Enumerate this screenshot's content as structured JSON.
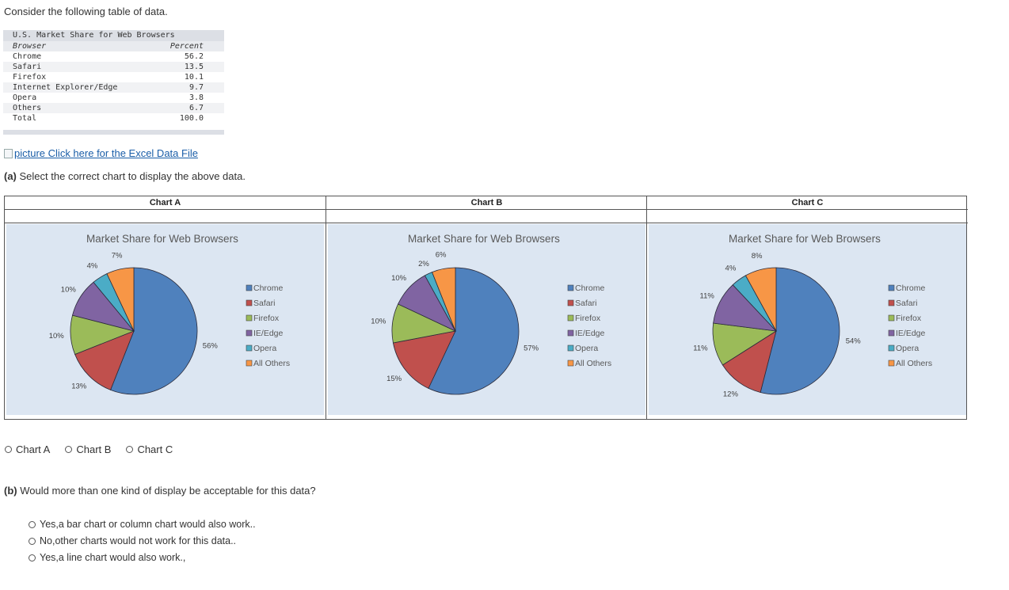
{
  "intro": "Consider the following table of data.",
  "table": {
    "caption": "U.S. Market Share for Web Browsers",
    "headers": [
      "Browser",
      "Percent"
    ],
    "rows": [
      {
        "browser": "Chrome",
        "percent": "56.2"
      },
      {
        "browser": "Safari",
        "percent": "13.5"
      },
      {
        "browser": "Firefox",
        "percent": "10.1"
      },
      {
        "browser": "Internet Explorer/Edge",
        "percent": "9.7"
      },
      {
        "browser": "Opera",
        "percent": "3.8"
      },
      {
        "browser": "Others",
        "percent": "6.7"
      },
      {
        "browser": "Total",
        "percent": "100.0"
      }
    ]
  },
  "link": {
    "alt": "picture",
    "text": "Click here for the Excel Data File"
  },
  "question_a": {
    "prefix": "(a)",
    "text": "Select the correct chart to display the above data."
  },
  "chart_data": [
    {
      "type": "pie",
      "name": "Chart A",
      "title": "Market Share for Web Browsers",
      "categories": [
        "Chrome",
        "Safari",
        "Firefox",
        "IE/Edge",
        "Opera",
        "All Others"
      ],
      "values": [
        56,
        13,
        10,
        10,
        4,
        7
      ],
      "labels": [
        "56%",
        "13%",
        "10%",
        "10%",
        "4%",
        "7%"
      ],
      "legend": "right"
    },
    {
      "type": "pie",
      "name": "Chart B",
      "title": "Market Share for Web Browsers",
      "categories": [
        "Chrome",
        "Safari",
        "Firefox",
        "IE/Edge",
        "Opera",
        "All Others"
      ],
      "values": [
        57,
        15,
        10,
        10,
        2,
        6
      ],
      "labels": [
        "57%",
        "15%",
        "10%",
        "10%",
        "2%",
        "6%"
      ],
      "legend": "right"
    },
    {
      "type": "pie",
      "name": "Chart C",
      "title": "Market Share for Web Browsers",
      "categories": [
        "Chrome",
        "Safari",
        "Firefox",
        "IE/Edge",
        "Opera",
        "All Others"
      ],
      "values": [
        54,
        12,
        11,
        11,
        4,
        8
      ],
      "labels": [
        "54%",
        "12%",
        "11%",
        "11%",
        "4%",
        "8%"
      ],
      "legend": "right"
    }
  ],
  "colors": [
    "#4f81bd",
    "#c0504d",
    "#9bbb59",
    "#8064a2",
    "#4bacc6",
    "#f79646"
  ],
  "chart_background": "#dce6f2",
  "choices_a": [
    "Chart A",
    "Chart B",
    "Chart C"
  ],
  "question_b": {
    "prefix": "(b)",
    "text": "Would more than one kind of display be acceptable for this data?"
  },
  "choices_b": [
    "Yes,a bar chart or column chart would also work..",
    "No,other charts would not work for this data..",
    "Yes,a line chart would also work.,"
  ]
}
